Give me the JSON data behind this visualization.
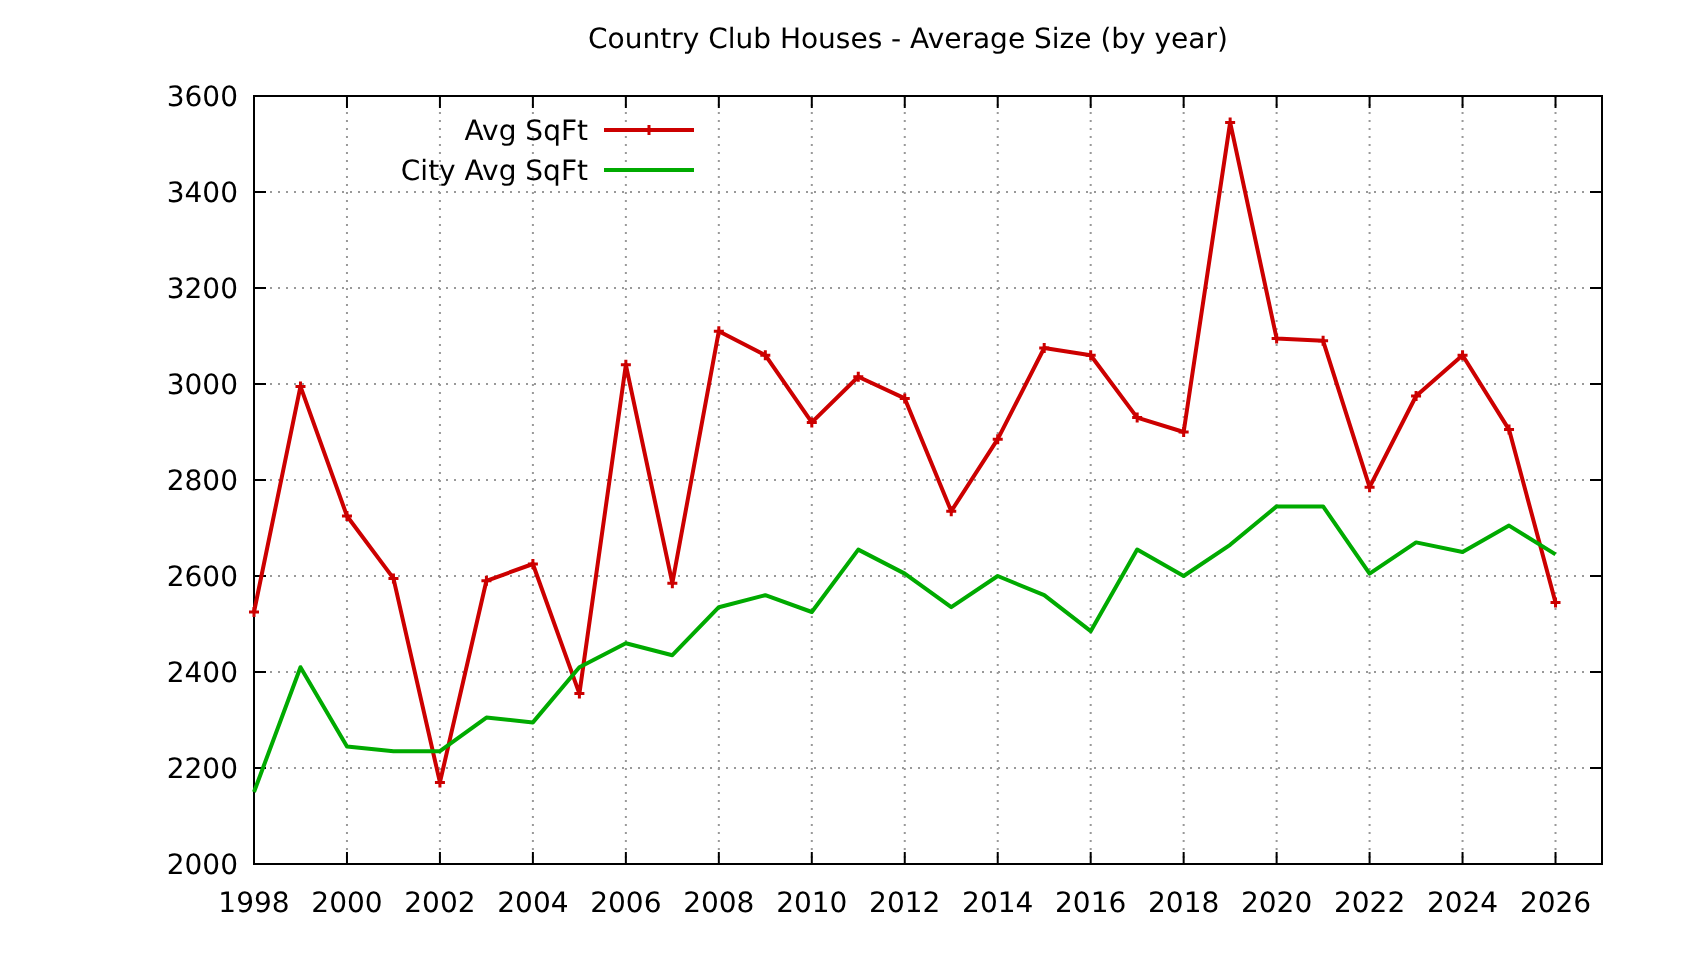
{
  "chart_data": {
    "type": "line",
    "title": "Country Club Houses - Average Size (by year)",
    "x": [
      1998,
      1999,
      2000,
      2001,
      2002,
      2003,
      2004,
      2005,
      2006,
      2007,
      2008,
      2009,
      2010,
      2011,
      2012,
      2013,
      2014,
      2015,
      2016,
      2017,
      2018,
      2019,
      2020,
      2021,
      2022,
      2023,
      2024,
      2025,
      2026
    ],
    "series": [
      {
        "name": "Avg SqFt",
        "color": "#cc0000",
        "marker": "cross",
        "values": [
          2525,
          2995,
          2725,
          2595,
          2170,
          2590,
          2625,
          2355,
          3040,
          2585,
          3110,
          3060,
          2920,
          3015,
          2970,
          2735,
          2885,
          3075,
          3060,
          2930,
          2900,
          3545,
          3095,
          3090,
          2785,
          2975,
          3060,
          2905,
          2545
        ]
      },
      {
        "name": "City Avg SqFt",
        "color": "#00aa00",
        "marker": "none",
        "values": [
          2150,
          2410,
          2245,
          2235,
          2235,
          2305,
          2295,
          2410,
          2460,
          2435,
          2535,
          2560,
          2525,
          2655,
          2605,
          2535,
          2600,
          2560,
          2485,
          2655,
          2600,
          2665,
          2745,
          2745,
          2605,
          2670,
          2650,
          2705,
          2645
        ]
      }
    ],
    "xlim": [
      1998,
      2027
    ],
    "xticks": [
      1998,
      2000,
      2002,
      2004,
      2006,
      2008,
      2010,
      2012,
      2014,
      2016,
      2018,
      2020,
      2022,
      2024,
      2026
    ],
    "ylim": [
      2000,
      3600
    ],
    "yticks": [
      2000,
      2200,
      2400,
      2600,
      2800,
      3000,
      3200,
      3400,
      3600
    ],
    "grid": true,
    "legend": "top left",
    "line_style": "solid"
  }
}
